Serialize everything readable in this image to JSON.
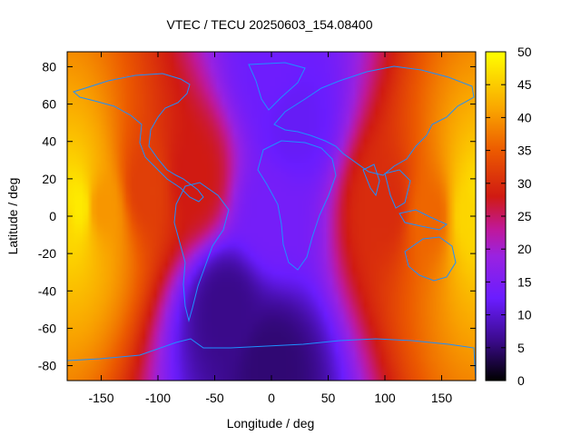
{
  "chart_data": {
    "type": "heatmap",
    "title": "VTEC / TECU 20250603_154.08400",
    "xlabel": "Longitude / deg",
    "ylabel": "Latitude / deg",
    "xlim": [
      -180,
      180
    ],
    "ylim": [
      -88,
      88
    ],
    "x_ticks": [
      -150,
      -100,
      -50,
      0,
      50,
      100,
      150
    ],
    "y_ticks": [
      -80,
      -60,
      -40,
      -20,
      0,
      20,
      40,
      60,
      80
    ],
    "colorbar": {
      "range": [
        0,
        50
      ],
      "ticks": [
        0,
        5,
        10,
        15,
        20,
        25,
        30,
        35,
        40,
        45,
        50
      ],
      "colormap": "gnuplot-like (black - purple - blue - red - orange - yellow)"
    },
    "overlay": "coastlines",
    "overlay_color": "#1e90ff",
    "grid": false,
    "features": [
      {
        "lon": -170,
        "lat": 5,
        "value": 48
      },
      {
        "lon": -150,
        "lat": 5,
        "value": 40
      },
      {
        "lon": -110,
        "lat": 15,
        "value": 32
      },
      {
        "lon": -70,
        "lat": 20,
        "value": 28
      },
      {
        "lon": 100,
        "lat": 5,
        "value": 30
      },
      {
        "lon": 140,
        "lat": 0,
        "value": 36
      },
      {
        "lon": 175,
        "lat": 0,
        "value": 46
      },
      {
        "lon": 0,
        "lat": 0,
        "value": 14
      },
      {
        "lon": 20,
        "lat": 50,
        "value": 12
      },
      {
        "lon": -40,
        "lat": -50,
        "value": 6
      },
      {
        "lon": 0,
        "lat": -80,
        "value": 5
      },
      {
        "lon": 0,
        "lat": 80,
        "value": 13
      }
    ]
  }
}
